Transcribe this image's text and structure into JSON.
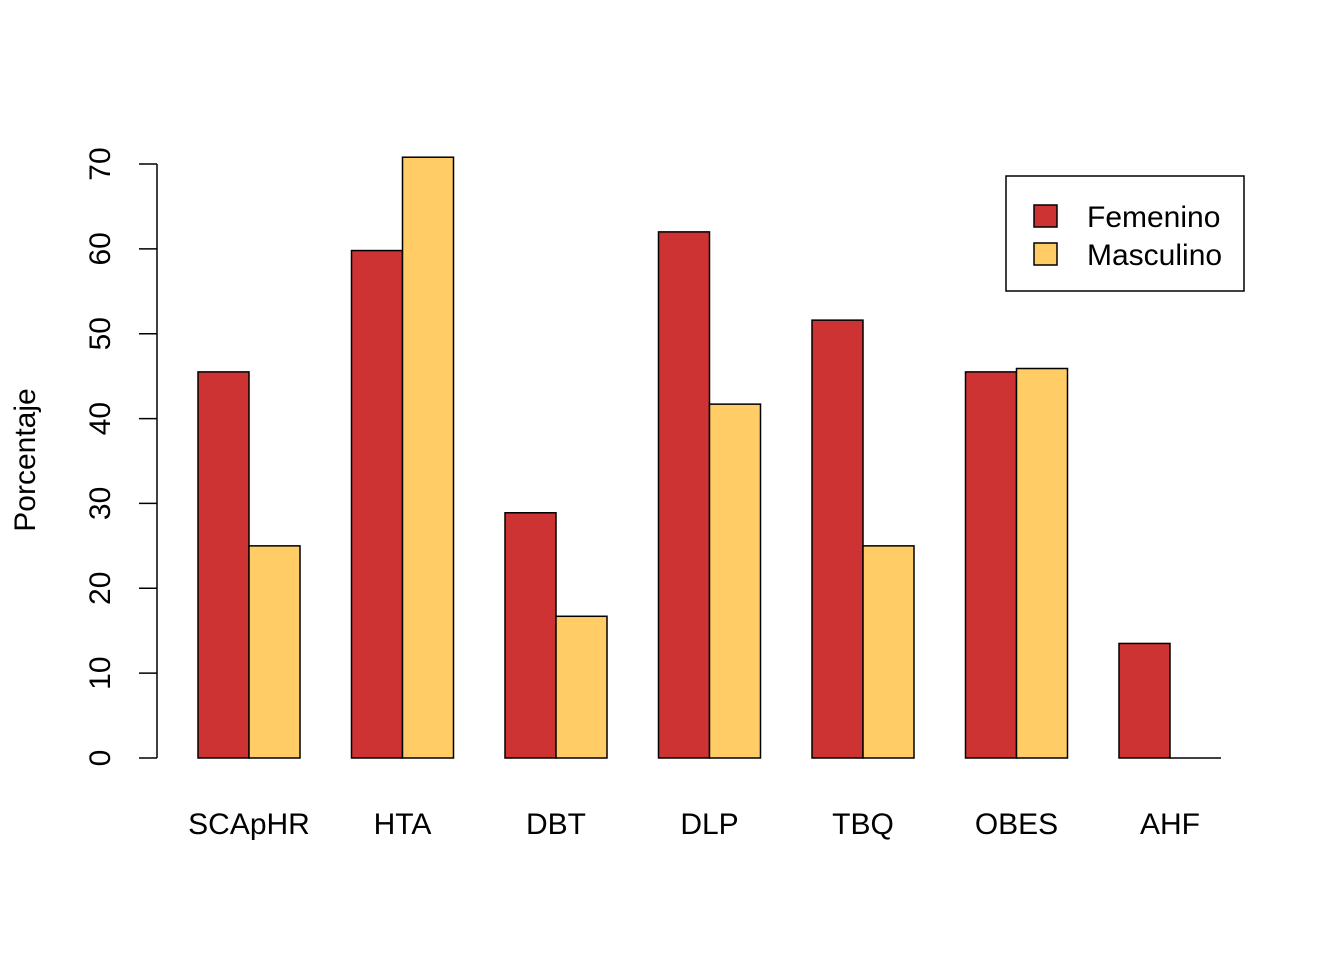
{
  "chart_data": {
    "type": "bar",
    "title": "",
    "xlabel": "",
    "ylabel": "Porcentaje",
    "ylim": [
      0,
      70
    ],
    "yticks": [
      0,
      10,
      20,
      30,
      40,
      50,
      60,
      70
    ],
    "ytick_labels": [
      "0",
      "10",
      "20",
      "30",
      "40",
      "50",
      "60",
      "70"
    ],
    "grid": false,
    "legend_position": "top-right",
    "categories": [
      "SCApHR",
      "HTA",
      "DBT",
      "DLP",
      "TBQ",
      "OBES",
      "AHF"
    ],
    "series": [
      {
        "name": "Femenino",
        "color": "#CD3333",
        "values": [
          45.5,
          59.8,
          28.9,
          62.0,
          51.6,
          45.5,
          13.5
        ]
      },
      {
        "name": "Masculino",
        "color": "#FFCC66",
        "values": [
          25.0,
          70.8,
          16.7,
          41.7,
          25.0,
          45.9,
          0
        ]
      }
    ]
  }
}
